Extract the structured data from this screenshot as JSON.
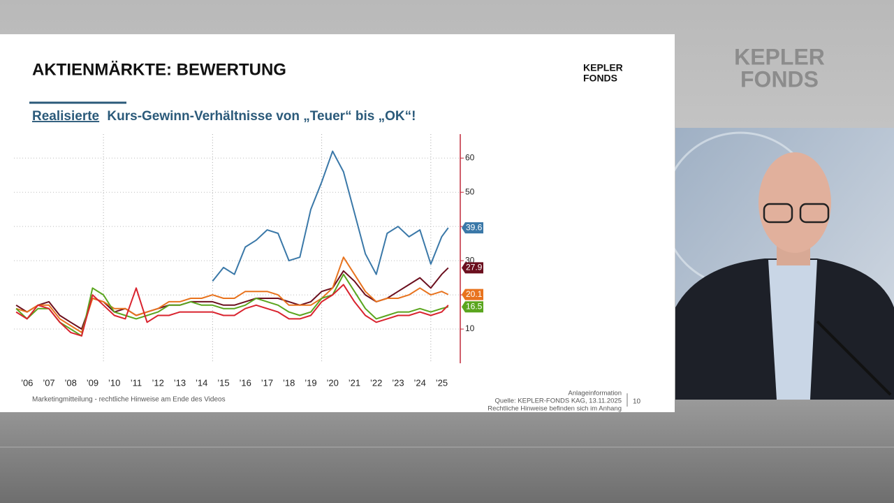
{
  "slide": {
    "title": "AKTIENMÄRKTE: BEWERTUNG",
    "logo_line1": "KEPLER",
    "logo_line2": "FONDS",
    "subtitle_emphasis": "Realisierte",
    "subtitle_rest": "Kurs-Gewinn-Verhältnisse von „Teuer“ bis „OK“!",
    "footer_left": "Marketingmitteilung - rechtliche Hinweise am Ende des Videos",
    "footer_right": [
      "Anlageinformation",
      "Quelle: KEPLER-FONDS KAG, 13.11.2025",
      "Rechtliche Hinweise befinden sich im Anhang"
    ],
    "page_number": "10"
  },
  "background_logo": [
    "KEPLER",
    "FONDS"
  ],
  "chart_data": {
    "type": "line",
    "x": [
      2006.0,
      2006.5,
      2007.0,
      2007.5,
      2008.0,
      2008.5,
      2009.0,
      2009.5,
      2010.0,
      2010.5,
      2011.0,
      2011.5,
      2012.0,
      2012.5,
      2013.0,
      2013.5,
      2014.0,
      2014.5,
      2015.0,
      2015.5,
      2016.0,
      2016.5,
      2017.0,
      2017.5,
      2018.0,
      2018.5,
      2019.0,
      2019.5,
      2020.0,
      2020.5,
      2021.0,
      2021.5,
      2022.0,
      2022.5,
      2023.0,
      2023.5,
      2024.0,
      2024.5,
      2025.0,
      2025.5,
      2025.8
    ],
    "series": [
      {
        "color": "#3a78a8",
        "end_label": true,
        "values": [
          null,
          null,
          null,
          null,
          null,
          null,
          null,
          null,
          null,
          null,
          null,
          null,
          null,
          null,
          null,
          null,
          null,
          null,
          24,
          28,
          26,
          34,
          36,
          39,
          38,
          30,
          31,
          45,
          53,
          62,
          56,
          44,
          32,
          26,
          38,
          40,
          37,
          39,
          29,
          37,
          39.6
        ]
      },
      {
        "color": "#6b0f1e",
        "end_label": true,
        "values": [
          17,
          15,
          17,
          18,
          14,
          12,
          10,
          19,
          18,
          15,
          16,
          14,
          15,
          16,
          17,
          17,
          18,
          18,
          18,
          17,
          17,
          18,
          19,
          19,
          19,
          18,
          17,
          18,
          21,
          22,
          27,
          24,
          20,
          18,
          19,
          21,
          23,
          25,
          22,
          26,
          27.9
        ]
      },
      {
        "color": "#e8731e",
        "end_label": true,
        "values": [
          16,
          15,
          17,
          17,
          13,
          11,
          9,
          19,
          18,
          16,
          16,
          14,
          15,
          16,
          18,
          18,
          19,
          19,
          20,
          19,
          19,
          21,
          21,
          21,
          20,
          17,
          17,
          17,
          19,
          22,
          31,
          26,
          21,
          18,
          19,
          19,
          20,
          22,
          20,
          21,
          20.1
        ]
      },
      {
        "color": "#5aa51e",
        "end_label": true,
        "values": [
          16,
          13,
          16,
          16,
          12,
          10,
          8,
          22,
          20,
          15,
          14,
          13,
          14,
          15,
          17,
          17,
          18,
          17,
          17,
          16,
          16,
          17,
          19,
          18,
          17,
          15,
          14,
          15,
          19,
          20,
          26,
          21,
          16,
          13,
          14,
          15,
          15,
          16,
          15,
          16,
          16.5
        ]
      },
      {
        "color": "#d9232e",
        "end_label": false,
        "values": [
          15,
          13,
          17,
          16,
          12,
          9,
          8,
          20,
          17,
          14,
          13,
          22,
          12,
          14,
          14,
          15,
          15,
          15,
          15,
          14,
          14,
          16,
          17,
          16,
          15,
          13,
          13,
          14,
          18,
          20,
          23,
          18,
          14,
          12,
          13,
          14,
          14,
          15,
          14,
          15,
          17
        ]
      }
    ],
    "xlim": [
      2005.9,
      2026.35
    ],
    "xticks": [
      {
        "value": 2006.5,
        "label": "’06"
      },
      {
        "value": 2007.5,
        "label": "’07"
      },
      {
        "value": 2008.5,
        "label": "’08"
      },
      {
        "value": 2009.5,
        "label": "’09"
      },
      {
        "value": 2010.5,
        "label": "’10"
      },
      {
        "value": 2011.5,
        "label": "’11"
      },
      {
        "value": 2012.5,
        "label": "’12"
      },
      {
        "value": 2013.5,
        "label": "’13"
      },
      {
        "value": 2014.5,
        "label": "’14"
      },
      {
        "value": 2015.5,
        "label": "’15"
      },
      {
        "value": 2016.5,
        "label": "’16"
      },
      {
        "value": 2017.5,
        "label": "’17"
      },
      {
        "value": 2018.5,
        "label": "’18"
      },
      {
        "value": 2019.5,
        "label": "’19"
      },
      {
        "value": 2020.5,
        "label": "’20"
      },
      {
        "value": 2021.5,
        "label": "’21"
      },
      {
        "value": 2022.5,
        "label": "’22"
      },
      {
        "value": 2023.5,
        "label": "’23"
      },
      {
        "value": 2024.5,
        "label": "’24"
      },
      {
        "value": 2025.5,
        "label": "’25"
      }
    ],
    "xgrid": [
      2010,
      2015,
      2020,
      2025
    ],
    "ylim": [
      0,
      67
    ],
    "yticks": [
      10,
      20,
      30,
      40,
      50,
      60
    ],
    "grid": true,
    "axis_side": "right",
    "axis_color": "#c0283a"
  }
}
